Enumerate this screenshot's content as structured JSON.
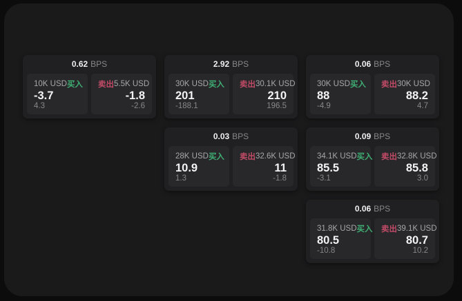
{
  "labels": {
    "bps_unit": "BPS",
    "buy": "买入",
    "sell": "卖出"
  },
  "colors": {
    "buy_green": "#3fae74",
    "sell_red": "#c04b66",
    "muted_gray": "#87878b",
    "card_bg": "#202022",
    "panel_bg": "#28282a",
    "frame_bg": "#1a1a1b",
    "page_bg": "#0c0c0d"
  },
  "cards": [
    {
      "bps": "0.62",
      "buy": {
        "amount": "10K USD",
        "price": "-3.7",
        "sub": "4.3"
      },
      "sell": {
        "amount": "5.5K USD",
        "price": "-1.8",
        "sub": "-2.6"
      }
    },
    {
      "bps": "2.92",
      "buy": {
        "amount": "30K USD",
        "price": "201",
        "sub": "-188.1"
      },
      "sell": {
        "amount": "30.1K USD",
        "price": "210",
        "sub": "196.5"
      }
    },
    {
      "bps": "0.06",
      "buy": {
        "amount": "30K USD",
        "price": "88",
        "sub": "-4.9"
      },
      "sell": {
        "amount": "30K USD",
        "price": "88.2",
        "sub": "4.7"
      }
    },
    {
      "bps": "0.03",
      "buy": {
        "amount": "28K USD",
        "price": "10.9",
        "sub": "1.3"
      },
      "sell": {
        "amount": "32.6K USD",
        "price": "11",
        "sub": "-1.8"
      }
    },
    {
      "bps": "0.09",
      "buy": {
        "amount": "34.1K USD",
        "price": "85.5",
        "sub": "-3.1"
      },
      "sell": {
        "amount": "32.8K USD",
        "price": "85.8",
        "sub": "3.0"
      }
    },
    {
      "bps": "0.06",
      "buy": {
        "amount": "31.8K USD",
        "price": "80.5",
        "sub": "-10.8"
      },
      "sell": {
        "amount": "39.1K USD",
        "price": "80.7",
        "sub": "10.2"
      }
    }
  ]
}
